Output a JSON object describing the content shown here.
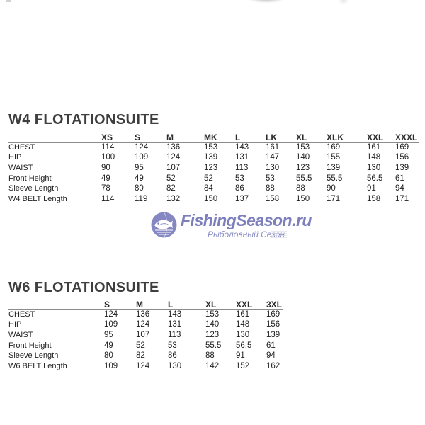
{
  "w4": {
    "title": "W4 FLOTATIONSUITE",
    "columns": [
      "XS",
      "S",
      "M",
      "MK",
      "L",
      "LK",
      "XL",
      "XLK",
      "XXL",
      "XXXL"
    ],
    "rows": [
      {
        "label": "CHEST",
        "values": [
          "114",
          "124",
          "136",
          "153",
          "143",
          "161",
          "153",
          "169",
          "161",
          "169"
        ]
      },
      {
        "label": "HIP",
        "values": [
          "100",
          "109",
          "124",
          "139",
          "131",
          "147",
          "140",
          "155",
          "148",
          "156"
        ]
      },
      {
        "label": "WAIST",
        "values": [
          "90",
          "95",
          "107",
          "123",
          "113",
          "130",
          "123",
          "139",
          "130",
          "139"
        ]
      },
      {
        "label": "Front Height",
        "values": [
          "49",
          "49",
          "52",
          "52",
          "53",
          "53",
          "55.5",
          "55.5",
          "56.5",
          "61"
        ]
      },
      {
        "label": "Sleeve Length",
        "values": [
          "78",
          "80",
          "82",
          "84",
          "86",
          "88",
          "88",
          "90",
          "91",
          "94"
        ]
      },
      {
        "label": "W4 BELT Length",
        "values": [
          "114",
          "119",
          "132",
          "150",
          "137",
          "158",
          "150",
          "171",
          "158",
          "171"
        ]
      }
    ]
  },
  "w6": {
    "title": "W6 FLOTATIONSUITE",
    "columns": [
      "S",
      "M",
      "L",
      "XL",
      "XXL",
      "3XL"
    ],
    "rows": [
      {
        "label": "CHEST",
        "values": [
          "124",
          "136",
          "143",
          "153",
          "161",
          "169"
        ]
      },
      {
        "label": "HIP",
        "values": [
          "109",
          "124",
          "131",
          "140",
          "148",
          "156"
        ]
      },
      {
        "label": "WAIST",
        "values": [
          "95",
          "107",
          "113",
          "123",
          "130",
          "139"
        ]
      },
      {
        "label": "Front Height",
        "values": [
          "49",
          "52",
          "53",
          "55.5",
          "56.5",
          "61"
        ]
      },
      {
        "label": "Sleeve Length",
        "values": [
          "80",
          "82",
          "86",
          "88",
          "91",
          "94"
        ]
      },
      {
        "label": "W6 BELT Length",
        "values": [
          "109",
          "124",
          "130",
          "142",
          "152",
          "162"
        ]
      }
    ]
  },
  "watermark": {
    "brand": "FishingSeason.ru",
    "subtitle": "Рыболовный Сезон",
    "brand_color": "#7c7fbc",
    "icon_color": "#8487c1"
  },
  "colors": {
    "title_text": "#3e3e3e",
    "table_text": "#1d1d1d",
    "header_rule": "#8c8c8c",
    "background": "#ffffff"
  }
}
